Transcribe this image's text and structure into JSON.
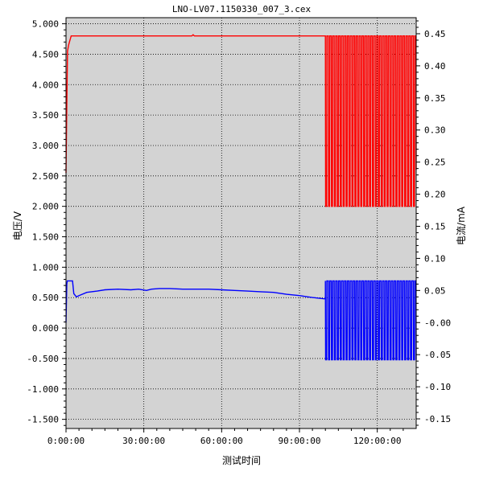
{
  "chart_data": {
    "type": "line",
    "title": "LNO-LV07.1150330_007_3.cex",
    "xlabel": "测试时间",
    "ylabel_left": "电压/V",
    "ylabel_right": "电流/mA",
    "xlim_hours": [
      0,
      135
    ],
    "ylim_left": [
      -1.65,
      5.1
    ],
    "ylim_right": [
      -0.165,
      0.475
    ],
    "x_tick_labels": [
      "0:00:00",
      "30:00:00",
      "60:00:00",
      "90:00:00",
      "120:00:00"
    ],
    "x_tick_hours": [
      0,
      30,
      60,
      90,
      120
    ],
    "y_left_ticks": [
      5.0,
      4.5,
      4.0,
      3.5,
      3.0,
      2.5,
      2.0,
      1.5,
      1.0,
      0.5,
      0.0,
      -0.5,
      -1.0,
      -1.5
    ],
    "y_left_tick_labels": [
      "5.000",
      "4.500",
      "4.000",
      "3.500",
      "3.000",
      "2.500",
      "2.000",
      "1.500",
      "1.000",
      "0.500",
      "0.000",
      "-0.500",
      "-1.000",
      "-1.500"
    ],
    "y_right_ticks": [
      0.45,
      0.4,
      0.35,
      0.3,
      0.25,
      0.2,
      0.15,
      0.1,
      0.05,
      0.0,
      -0.05,
      -0.1,
      -0.15
    ],
    "y_right_tick_labels": [
      "0.45",
      "0.40",
      "0.35",
      "0.30",
      "0.25",
      "0.20",
      "0.15",
      "0.10",
      "0.05",
      "-0.00",
      "-0.05",
      "-0.10",
      "-0.15"
    ],
    "grid": true,
    "plot_background": "#d3d3d3",
    "series": [
      {
        "axis": "left",
        "color": "#ff0000",
        "x": [
          0,
          0.3,
          0.6,
          1.0,
          2.0,
          3.0,
          48.5,
          49.0,
          49.5,
          100.0
        ],
        "values": [
          2.55,
          3.7,
          4.55,
          4.65,
          4.8,
          4.8,
          4.8,
          4.82,
          4.8,
          4.8
        ],
        "cycling": {
          "x_start": 100.0,
          "x_end": 135.0,
          "cycles": 31,
          "high": 4.8,
          "low": 2.0
        }
      },
      {
        "axis": "right",
        "color": "#0000ff",
        "x": [
          0,
          0.3,
          0.5,
          2.5,
          3.0,
          4.0,
          5.0,
          8.0,
          12.0,
          15.0,
          20.0,
          25.0,
          28.0,
          31.0,
          33.0,
          36.0,
          40.0,
          45.0,
          55.0,
          60.0,
          65.0,
          70.0,
          75.0,
          80.0,
          85.0,
          90.0,
          95.0,
          99.5,
          100.0
        ],
        "values": [
          0.0,
          0.06,
          0.065,
          0.065,
          0.045,
          0.04,
          0.042,
          0.047,
          0.049,
          0.051,
          0.052,
          0.051,
          0.052,
          0.05,
          0.052,
          0.053,
          0.053,
          0.052,
          0.052,
          0.051,
          0.05,
          0.049,
          0.048,
          0.047,
          0.044,
          0.042,
          0.039,
          0.037,
          0.037
        ],
        "cycling": {
          "x_start": 100.0,
          "x_end": 135.0,
          "cycles": 31,
          "high": 0.065,
          "low": -0.058
        }
      }
    ]
  }
}
